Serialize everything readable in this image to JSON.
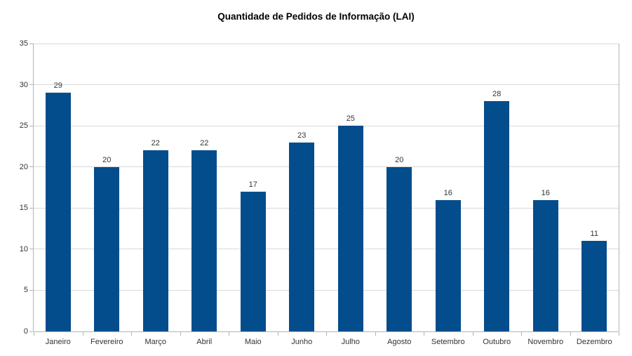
{
  "chart_data": {
    "type": "bar",
    "title": "Quantidade de Pedidos de Informação (LAI)",
    "categories": [
      "Janeiro",
      "Fevereiro",
      "Março",
      "Abril",
      "Maio",
      "Junho",
      "Julho",
      "Agosto",
      "Setembro",
      "Outubro",
      "Novembro",
      "Dezembro"
    ],
    "values": [
      29,
      20,
      22,
      22,
      17,
      23,
      25,
      20,
      16,
      28,
      16,
      11
    ],
    "xlabel": "",
    "ylabel": "",
    "ylim": [
      0,
      35
    ],
    "ytick_step": 5,
    "yticks": [
      0,
      5,
      10,
      15,
      20,
      25,
      30,
      35
    ],
    "grid": true,
    "legend_position": "none",
    "data_labels_visible": true,
    "colors": {
      "bar": "#044D8C",
      "gridline": "#d9d9d9",
      "axis_line": "#b3b3b3",
      "label_text": "#333333",
      "title_text": "#000000",
      "background": "#ffffff"
    }
  }
}
